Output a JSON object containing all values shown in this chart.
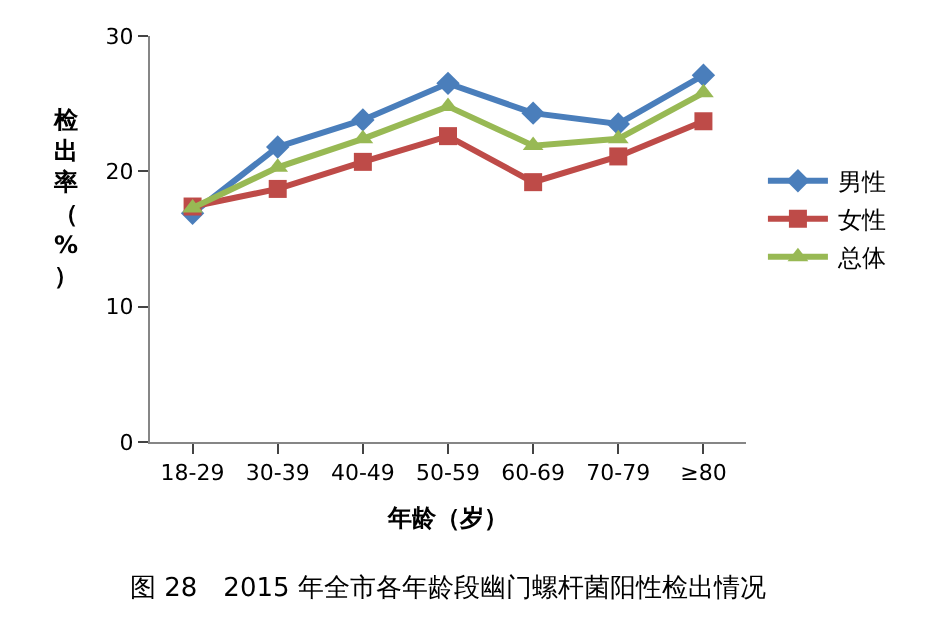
{
  "chart_data": {
    "type": "line",
    "categories": [
      "18-29",
      "30-39",
      "40-49",
      "50-59",
      "60-69",
      "70-79",
      "≥80"
    ],
    "series": [
      {
        "name": "男性",
        "color": "#4a7ebb",
        "marker": "diamond",
        "values": [
          16.9,
          21.8,
          23.8,
          26.5,
          24.3,
          23.5,
          27.1
        ]
      },
      {
        "name": "女性",
        "color": "#be4b48",
        "marker": "square",
        "values": [
          17.4,
          18.7,
          20.7,
          22.6,
          19.2,
          21.1,
          23.7
        ]
      },
      {
        "name": "总体",
        "color": "#98b954",
        "marker": "triangle",
        "values": [
          17.3,
          20.3,
          22.4,
          24.8,
          21.9,
          22.4,
          25.8
        ]
      }
    ],
    "xlabel": "年龄（岁）",
    "ylabel": "检出率（%）",
    "ylim": [
      0,
      30
    ],
    "yticks": [
      0,
      10,
      20,
      30
    ],
    "legend": "right",
    "annotations": [
      "图 28　2015 年全市各年龄段幽门螺杆菌阳性检出情况"
    ]
  }
}
